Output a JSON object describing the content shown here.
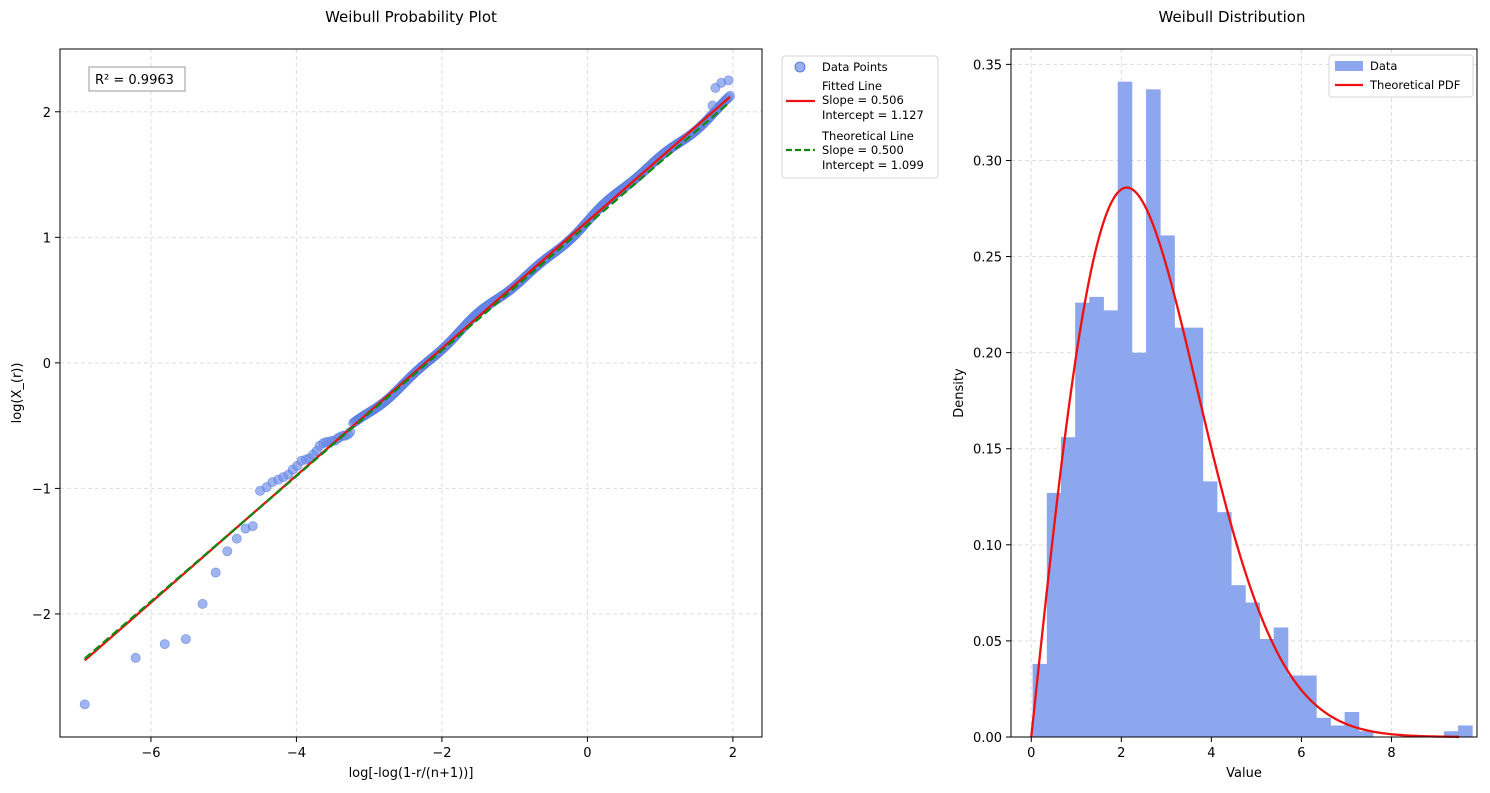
{
  "chart_data": [
    {
      "type": "scatter",
      "title": "Weibull Probability Plot",
      "xlabel": "log[-log(1-r/(n+1))]",
      "ylabel": "log(X_(r))",
      "xlim": [
        -7.25,
        2.4
      ],
      "ylim": [
        -2.98,
        2.5
      ],
      "xticks": [
        -6,
        -4,
        -2,
        0,
        2
      ],
      "yticks": [
        -2,
        -1,
        0,
        1,
        2
      ],
      "xtick_labels": [
        "−6",
        "−4",
        "−2",
        "0",
        "2"
      ],
      "ytick_labels": [
        "−2",
        "−1",
        "0",
        "1",
        "2"
      ],
      "grid": true,
      "annotation": "R² = 0.9963",
      "legend_position": "outside-right",
      "point_color": "#6d8ee6",
      "series": [
        {
          "name": "Data Points",
          "kind": "scatter",
          "points": [
            [
              -6.91,
              -2.72
            ],
            [
              -6.21,
              -2.35
            ],
            [
              -5.81,
              -2.24
            ],
            [
              -5.52,
              -2.2
            ],
            [
              -5.29,
              -1.92
            ],
            [
              -5.11,
              -1.67
            ],
            [
              -4.95,
              -1.5
            ],
            [
              -4.82,
              -1.4
            ],
            [
              -4.7,
              -1.32
            ],
            [
              -4.6,
              -1.3
            ],
            [
              -4.5,
              -1.02
            ],
            [
              -4.41,
              -0.99
            ],
            [
              -4.33,
              -0.95
            ],
            [
              -4.25,
              -0.93
            ],
            [
              -4.18,
              -0.91
            ],
            [
              -4.11,
              -0.89
            ],
            [
              -4.05,
              -0.85
            ],
            [
              -3.99,
              -0.82
            ],
            [
              -3.93,
              -0.78
            ],
            [
              -3.87,
              -0.77
            ],
            [
              -3.82,
              -0.76
            ],
            [
              -3.77,
              -0.73
            ],
            [
              -3.72,
              -0.7
            ],
            [
              -3.68,
              -0.66
            ],
            [
              -3.63,
              -0.64
            ],
            [
              -3.59,
              -0.63
            ],
            [
              -3.55,
              -0.63
            ],
            [
              -3.51,
              -0.62
            ],
            [
              -3.47,
              -0.62
            ],
            [
              -3.43,
              -0.6
            ],
            [
              -3.4,
              -0.59
            ],
            [
              -3.36,
              -0.58
            ],
            [
              -3.33,
              -0.58
            ],
            [
              -3.29,
              -0.57
            ],
            [
              -3.26,
              -0.55
            ]
          ]
        },
        {
          "name": "Fitted Line",
          "kind": "line",
          "slope": 0.506,
          "intercept": 1.127,
          "x_range": [
            -6.91,
            1.96
          ],
          "color": "#ee1111",
          "dash": "solid",
          "legend_lines": [
            "Fitted Line",
            "Slope = 0.506",
            "Intercept = 1.127"
          ]
        },
        {
          "name": "Theoretical Line",
          "kind": "line",
          "slope": 0.5,
          "intercept": 1.099,
          "x_range": [
            -6.91,
            1.96
          ],
          "color": "#118811",
          "dash": "dashed",
          "legend_lines": [
            "Theoretical Line",
            "Slope = 0.500",
            "Intercept = 1.099"
          ]
        }
      ]
    },
    {
      "type": "bar",
      "title": "Weibull Distribution",
      "xlabel": "Value",
      "ylabel": "Density",
      "xlim": [
        -0.45,
        9.9
      ],
      "ylim": [
        0,
        0.358
      ],
      "xticks": [
        0,
        2,
        4,
        6,
        8
      ],
      "yticks": [
        0,
        0.05,
        0.1,
        0.15,
        0.2,
        0.25,
        0.3,
        0.35
      ],
      "xtick_labels": [
        "0",
        "2",
        "4",
        "6",
        "8"
      ],
      "ytick_labels": [
        "0.00",
        "0.05",
        "0.10",
        "0.15",
        "0.20",
        "0.25",
        "0.30",
        "0.35"
      ],
      "grid": true,
      "legend_position": "upper-right",
      "bin_start": 0.03,
      "bin_width": 0.315,
      "bar_color": "#8ca7ee",
      "series": [
        {
          "name": "Data",
          "kind": "histogram",
          "values": [
            0.038,
            0.127,
            0.156,
            0.226,
            0.229,
            0.222,
            0.341,
            0.2,
            0.337,
            0.261,
            0.213,
            0.213,
            0.133,
            0.117,
            0.079,
            0.07,
            0.051,
            0.057,
            0.032,
            0.032,
            0.01,
            0.006,
            0.013,
            0.003,
            0.0,
            0.0,
            0.0,
            0.0,
            0.0,
            0.003,
            0.006
          ]
        },
        {
          "name": "Theoretical PDF",
          "kind": "line",
          "weibull_shape": 2,
          "weibull_scale": 3,
          "x_range": [
            0,
            9.5
          ],
          "color": "#ee1111"
        }
      ]
    }
  ]
}
